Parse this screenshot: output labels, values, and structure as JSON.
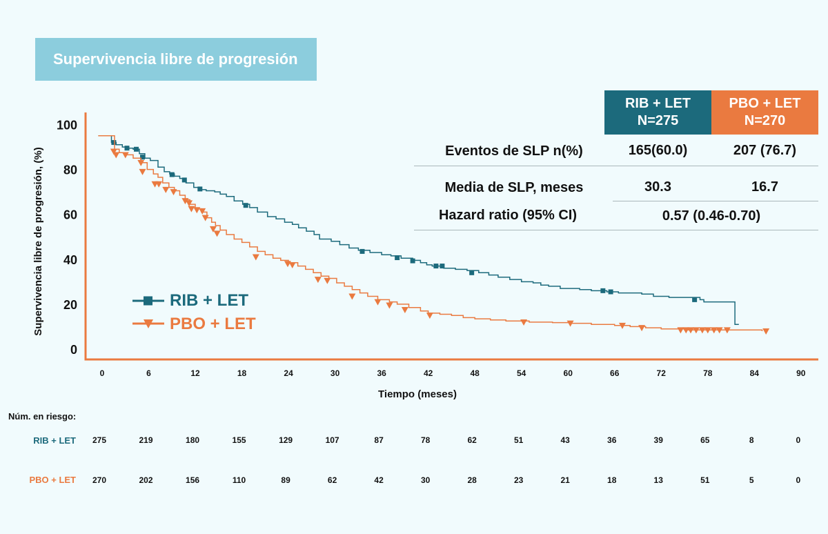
{
  "title": "Supervivencia libre de progresión",
  "table": {
    "columns": [
      {
        "line1": "RIB + LET",
        "line2": "N=275",
        "color": "#1c6a7c"
      },
      {
        "line1": "PBO + LET",
        "line2": "N=270",
        "color": "#ea7a40"
      }
    ],
    "rows": [
      {
        "label": "Eventos de SLP n(%)",
        "rib": "165(60.0)",
        "pbo": "207 (76.7)"
      },
      {
        "label": "Media de SLP, meses",
        "rib": "30.3",
        "pbo": "16.7"
      },
      {
        "label": "Hazard ratio (95% CI)",
        "combined": "0.57 (0.46-0.70)"
      }
    ]
  },
  "legend": [
    {
      "label": "RIB + LET",
      "color": "#1c6a7c",
      "marker": "square"
    },
    {
      "label": "PBO + LET",
      "color": "#ea7a40",
      "marker": "triangle-down"
    }
  ],
  "risk_table": {
    "heading": "Núm. en riesgo:",
    "times": [
      0,
      6,
      12,
      18,
      24,
      30,
      36,
      42,
      48,
      54,
      60,
      66,
      72,
      78,
      84,
      90
    ],
    "rows": [
      {
        "label": "RIB + LET",
        "color": "#1c6a7c",
        "values": [
          "275",
          "219",
          "180",
          "155",
          "129",
          "107",
          "87",
          "78",
          "62",
          "51",
          "43",
          "36",
          "39",
          "65",
          "8",
          "0"
        ]
      },
      {
        "label": "PBO + LET",
        "color": "#ea7a40",
        "values": [
          "270",
          "202",
          "156",
          "110",
          "89",
          "62",
          "42",
          "30",
          "28",
          "23",
          "21",
          "18",
          "13",
          "51",
          "5",
          "0"
        ]
      }
    ]
  },
  "chart_data": {
    "type": "line",
    "title": "",
    "xlabel": "Tiempo (meses)",
    "ylabel": "Supervivencia libre de progresión, (%)",
    "xlim": [
      0,
      90
    ],
    "ylim": [
      0,
      100
    ],
    "xticks": [
      0,
      6,
      12,
      18,
      24,
      30,
      36,
      42,
      48,
      54,
      60,
      66,
      72,
      78,
      84,
      90
    ],
    "yticks": [
      0,
      20,
      40,
      60,
      80,
      100
    ],
    "grid": false,
    "legend_position": "left",
    "axis_color": "#ea7a40",
    "series": [
      {
        "name": "RIB + LET",
        "color": "#1c6a7c",
        "marker": "square",
        "steps": [
          [
            -0.5,
            95
          ],
          [
            0.8,
            95
          ],
          [
            1.2,
            92
          ],
          [
            1.8,
            91
          ],
          [
            2.6,
            90
          ],
          [
            3.2,
            89.5
          ],
          [
            4.0,
            89
          ],
          [
            4.8,
            87
          ],
          [
            5.5,
            85
          ],
          [
            6.2,
            84
          ],
          [
            7.2,
            81
          ],
          [
            8.0,
            79
          ],
          [
            8.7,
            78
          ],
          [
            9.3,
            77
          ],
          [
            10.0,
            76
          ],
          [
            10.8,
            74
          ],
          [
            11.8,
            72
          ],
          [
            12.6,
            71
          ],
          [
            13.4,
            70.5
          ],
          [
            14.5,
            70
          ],
          [
            15.2,
            69
          ],
          [
            16.0,
            68
          ],
          [
            17.0,
            66
          ],
          [
            18.1,
            64.5
          ],
          [
            19.0,
            63
          ],
          [
            20.0,
            61
          ],
          [
            21.3,
            59
          ],
          [
            22.4,
            58
          ],
          [
            23.5,
            56.5
          ],
          [
            24.5,
            55.5
          ],
          [
            25.3,
            54
          ],
          [
            26.3,
            52.5
          ],
          [
            27.3,
            51
          ],
          [
            28.0,
            49
          ],
          [
            29.5,
            48
          ],
          [
            30.6,
            46.5
          ],
          [
            31.8,
            45
          ],
          [
            33.0,
            44
          ],
          [
            34.5,
            43
          ],
          [
            36.0,
            42
          ],
          [
            37.2,
            41.5
          ],
          [
            38.5,
            40.5
          ],
          [
            40.0,
            39.5
          ],
          [
            41.0,
            38.5
          ],
          [
            41.8,
            37.5
          ],
          [
            42.5,
            37
          ],
          [
            44.0,
            36
          ],
          [
            45.5,
            35.5
          ],
          [
            47.0,
            35
          ],
          [
            48.5,
            34
          ],
          [
            49.8,
            33
          ],
          [
            51.0,
            32
          ],
          [
            52.5,
            31
          ],
          [
            54.0,
            30
          ],
          [
            55.5,
            29.5
          ],
          [
            56.5,
            28.5
          ],
          [
            57.5,
            28
          ],
          [
            59.0,
            27
          ],
          [
            61.5,
            26.5
          ],
          [
            63.0,
            26
          ],
          [
            65.0,
            25.5
          ],
          [
            66.5,
            25
          ],
          [
            69.5,
            24.5
          ],
          [
            71.0,
            23.5
          ],
          [
            73.0,
            23
          ],
          [
            77.0,
            22
          ],
          [
            77.5,
            21
          ],
          [
            81.0,
            21
          ],
          [
            81.5,
            11
          ],
          [
            82.0,
            11
          ]
        ],
        "censor": [
          [
            1.5,
            92
          ],
          [
            3.2,
            89.5
          ],
          [
            4.4,
            89
          ],
          [
            5.2,
            85.5
          ],
          [
            9.0,
            77.7
          ],
          [
            10.6,
            75.3
          ],
          [
            12.6,
            71.3
          ],
          [
            18.5,
            64
          ],
          [
            33.5,
            43.5
          ],
          [
            38.0,
            40.7
          ],
          [
            40.0,
            39.3
          ],
          [
            43.0,
            37
          ],
          [
            43.8,
            37
          ],
          [
            47.6,
            34
          ],
          [
            64.5,
            26
          ],
          [
            65.5,
            25.5
          ],
          [
            76.3,
            22
          ]
        ]
      },
      {
        "name": "PBO + LET",
        "color": "#ea7a40",
        "marker": "triangle-down",
        "steps": [
          [
            -0.5,
            95
          ],
          [
            1.0,
            95
          ],
          [
            1.6,
            89
          ],
          [
            2.2,
            87.5
          ],
          [
            3.0,
            86.5
          ],
          [
            4.0,
            85
          ],
          [
            5.0,
            83
          ],
          [
            5.8,
            80
          ],
          [
            6.6,
            78
          ],
          [
            7.2,
            76.5
          ],
          [
            7.8,
            74
          ],
          [
            8.6,
            72
          ],
          [
            9.3,
            70.5
          ],
          [
            10.0,
            68.5
          ],
          [
            10.7,
            66.5
          ],
          [
            11.3,
            64.5
          ],
          [
            12.0,
            62.5
          ],
          [
            12.8,
            61
          ],
          [
            13.5,
            58.5
          ],
          [
            14.1,
            56.5
          ],
          [
            14.6,
            55
          ],
          [
            15.2,
            53
          ],
          [
            16.0,
            51
          ],
          [
            17.0,
            49
          ],
          [
            18.0,
            47.5
          ],
          [
            19.0,
            45.5
          ],
          [
            20.0,
            43.5
          ],
          [
            21.0,
            42
          ],
          [
            22.0,
            40.5
          ],
          [
            23.0,
            39.5
          ],
          [
            24.0,
            38.5
          ],
          [
            25.2,
            37
          ],
          [
            26.2,
            35.5
          ],
          [
            27.2,
            34
          ],
          [
            28.2,
            32.5
          ],
          [
            29.2,
            31.5
          ],
          [
            30.2,
            29.5
          ],
          [
            31.2,
            28
          ],
          [
            32.2,
            26.5
          ],
          [
            33.2,
            25
          ],
          [
            34.2,
            23.5
          ],
          [
            35.5,
            22
          ],
          [
            37.0,
            21
          ],
          [
            38.0,
            20
          ],
          [
            39.5,
            18.5
          ],
          [
            41.0,
            17
          ],
          [
            42.0,
            16
          ],
          [
            43.5,
            15.5
          ],
          [
            45.0,
            15
          ],
          [
            46.5,
            14
          ],
          [
            48.0,
            13.5
          ],
          [
            50.0,
            13
          ],
          [
            52.0,
            12.5
          ],
          [
            55.0,
            12
          ],
          [
            58.0,
            11.8
          ],
          [
            60.5,
            11.5
          ],
          [
            63.0,
            11
          ],
          [
            66.0,
            10.5
          ],
          [
            68.0,
            10
          ],
          [
            70.0,
            9.5
          ],
          [
            72.0,
            9
          ],
          [
            75.0,
            8.5
          ],
          [
            79.0,
            8.5
          ],
          [
            85.0,
            8
          ]
        ],
        "censor": [
          [
            1.5,
            88
          ],
          [
            1.8,
            86.5
          ],
          [
            3.0,
            86.5
          ],
          [
            5.0,
            83
          ],
          [
            5.2,
            79
          ],
          [
            6.8,
            73.5
          ],
          [
            7.3,
            73.5
          ],
          [
            8.2,
            71
          ],
          [
            9.2,
            70
          ],
          [
            10.7,
            66
          ],
          [
            11.2,
            65
          ],
          [
            11.5,
            62.5
          ],
          [
            12.2,
            62
          ],
          [
            12.9,
            61.5
          ],
          [
            13.3,
            58.5
          ],
          [
            14.3,
            53.5
          ],
          [
            14.8,
            51.5
          ],
          [
            19.8,
            41
          ],
          [
            23.9,
            38
          ],
          [
            24.5,
            37.5
          ],
          [
            27.8,
            31
          ],
          [
            29.0,
            30.5
          ],
          [
            32.2,
            23.5
          ],
          [
            35.5,
            21
          ],
          [
            37.0,
            19.5
          ],
          [
            39.0,
            17.5
          ],
          [
            42.2,
            15
          ],
          [
            54.3,
            12
          ],
          [
            60.3,
            11.5
          ],
          [
            67.0,
            10.5
          ],
          [
            69.5,
            9.5
          ],
          [
            74.5,
            8.5
          ],
          [
            75.2,
            8.5
          ],
          [
            75.8,
            8.5
          ],
          [
            76.5,
            8.5
          ],
          [
            77.3,
            8.5
          ],
          [
            78.0,
            8.5
          ],
          [
            78.8,
            8.5
          ],
          [
            79.5,
            8.5
          ],
          [
            80.5,
            8.5
          ],
          [
            85.5,
            8
          ]
        ]
      }
    ]
  }
}
